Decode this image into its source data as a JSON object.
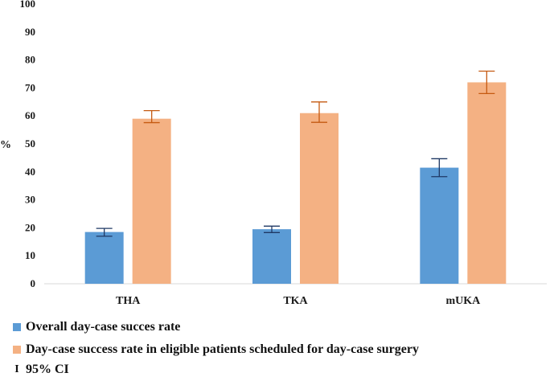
{
  "chart_data": {
    "type": "bar",
    "title": "",
    "xlabel": "",
    "ylabel": "%",
    "ylim": [
      0,
      100
    ],
    "yticks": [
      0,
      10,
      20,
      30,
      40,
      50,
      60,
      70,
      80,
      90,
      100
    ],
    "categories": [
      "THA",
      "TKA",
      "mUKA"
    ],
    "series": [
      {
        "name": "Overall day-case succes rate",
        "color": "#5b9bd5",
        "error_color": "#1f3864",
        "values": [
          18.5,
          19.5,
          41.5
        ],
        "ci_low": [
          17.0,
          18.3,
          38.3
        ],
        "ci_high": [
          19.8,
          20.6,
          44.7
        ]
      },
      {
        "name": "Day-case success rate in eligible patients scheduled for day-case surgery",
        "color": "#f4b183",
        "error_color": "#c55a11",
        "values": [
          59.0,
          61.0,
          72.0
        ],
        "ci_low": [
          57.6,
          57.7,
          68.0
        ],
        "ci_high": [
          61.9,
          65.0,
          76.0
        ]
      }
    ],
    "legend": {
      "position": "bottom-left",
      "ci_label": "95% CI",
      "ci_glyph": "I"
    },
    "grid": false
  }
}
